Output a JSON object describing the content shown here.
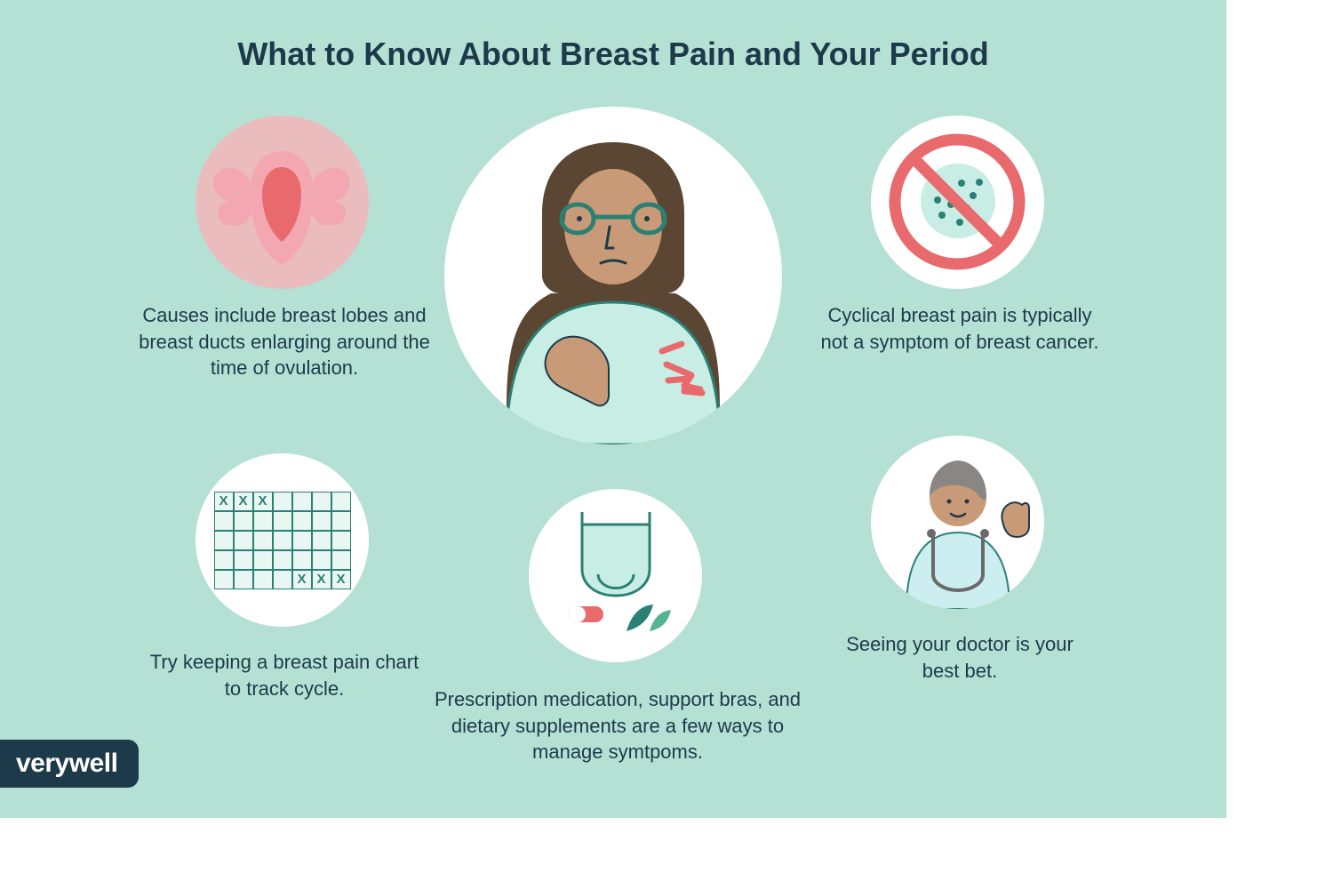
{
  "title": "What to Know About Breast Pain and Your Period",
  "brand": "verywell",
  "background_color": "#b5e0d4",
  "circle_background": "#ffffff",
  "text_color": "#1d3a4a",
  "accent_red": "#e86a6d",
  "accent_pink": "#f3a8b1",
  "accent_teal": "#2b8075",
  "accent_mint": "#c7ede4",
  "title_fontsize": 36,
  "caption_fontsize": 22,
  "items": {
    "tl": {
      "caption": "Causes include breast lobes and breast ducts enlarging around the time of ovulation.",
      "icon": "uterus-icon"
    },
    "tr": {
      "caption": "Cyclical breast pain is typically not a symptom of breast cancer.",
      "icon": "no-cancer-icon"
    },
    "bl": {
      "caption": "Try keeping a breast pain chart to track cycle.",
      "icon": "calendar-icon",
      "calendar_marks": [
        0,
        1,
        2,
        32,
        33,
        34
      ]
    },
    "bc": {
      "caption": "Prescription medication, support bras, and dietary supplements are a few ways to manage symtpoms.",
      "icon": "bra-pill-leaf-icon"
    },
    "br": {
      "caption": "Seeing your doctor is your best bet.",
      "icon": "doctor-icon"
    }
  },
  "center": {
    "icon": "person-discomfort-icon"
  }
}
